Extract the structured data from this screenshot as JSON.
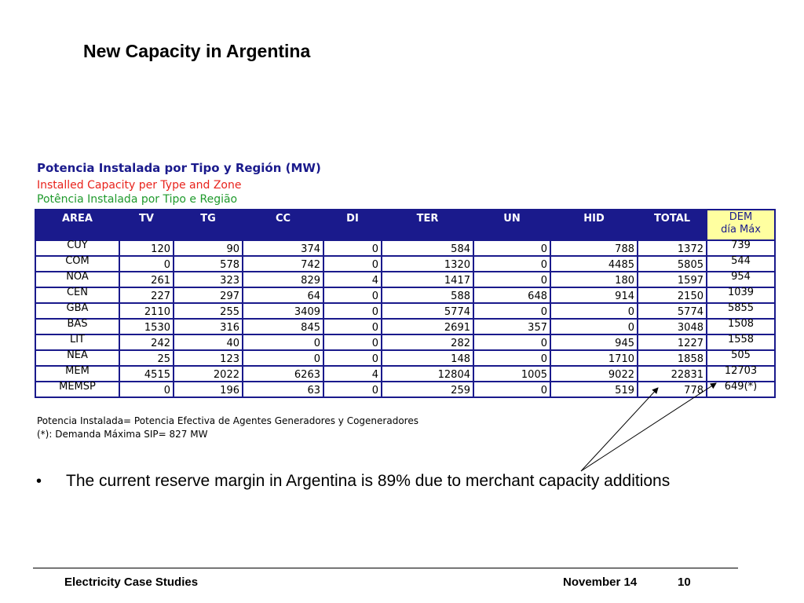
{
  "slide": {
    "title": "New Capacity in Argentina",
    "bullet": "The current reserve margin in Argentina is 89% due to merchant capacity additions"
  },
  "table_caption": {
    "es": "Potencia Instalada por Tipo y Región (MW)",
    "en": "Installed Capacity per Type and Zone",
    "pt": "Potência Instalada por Tipo e Região"
  },
  "table": {
    "headers": [
      "AREA",
      "TV",
      "TG",
      "CC",
      "DI",
      "TER",
      "UN",
      "HID",
      "TOTAL"
    ],
    "dem_header": [
      "DEM",
      "día Máx"
    ],
    "rows": [
      [
        "CUY",
        "120",
        "90",
        "374",
        "0",
        "584",
        "0",
        "788",
        "1372",
        "739"
      ],
      [
        "COM",
        "0",
        "578",
        "742",
        "0",
        "1320",
        "0",
        "4485",
        "5805",
        "544"
      ],
      [
        "NOA",
        "261",
        "323",
        "829",
        "4",
        "1417",
        "0",
        "180",
        "1597",
        "954"
      ],
      [
        "CEN",
        "227",
        "297",
        "64",
        "0",
        "588",
        "648",
        "914",
        "2150",
        "1039"
      ],
      [
        "GBA",
        "2110",
        "255",
        "3409",
        "0",
        "5774",
        "0",
        "0",
        "5774",
        "5855"
      ],
      [
        "BAS",
        "1530",
        "316",
        "845",
        "0",
        "2691",
        "357",
        "0",
        "3048",
        "1508"
      ],
      [
        "LIT",
        "242",
        "40",
        "0",
        "0",
        "282",
        "0",
        "945",
        "1227",
        "1558"
      ],
      [
        "NEA",
        "25",
        "123",
        "0",
        "0",
        "148",
        "0",
        "1710",
        "1858",
        "505"
      ],
      [
        "MEM",
        "4515",
        "2022",
        "6263",
        "4",
        "12804",
        "1005",
        "9022",
        "22831",
        "12703"
      ],
      [
        "MEMSP",
        "0",
        "196",
        "63",
        "0",
        "259",
        "0",
        "519",
        "778",
        "649(*)"
      ]
    ]
  },
  "footnotes": [
    "Potencia Instalada= Potencia Efectiva de Agentes Generadores y Cogeneradores",
    "(*): Demanda Máxima SIP= 827 MW"
  ],
  "footer": {
    "left": "Electricity Case Studies",
    "date": "November 14",
    "page": "10"
  },
  "colors": {
    "header_bg": "#1a1a8c",
    "dem_header_bg": "#ffffa0",
    "caption_en": "#e8231c",
    "caption_pt": "#1f9a2c"
  }
}
